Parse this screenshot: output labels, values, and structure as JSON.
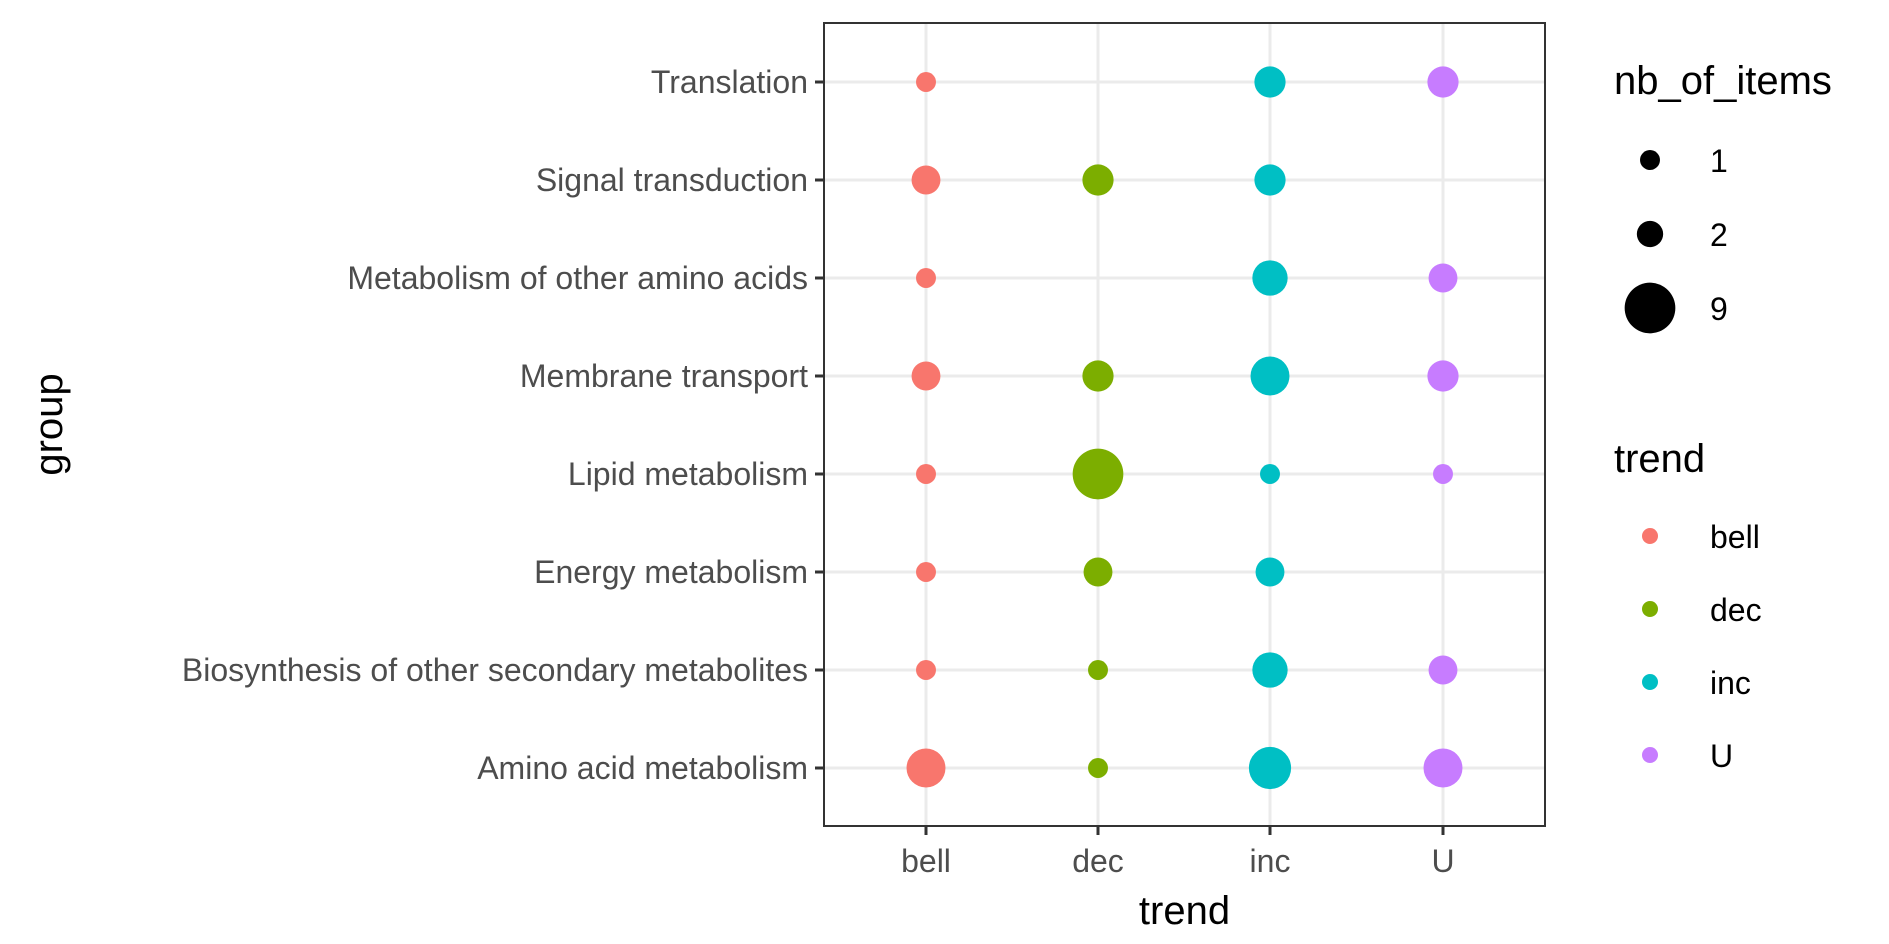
{
  "chart_data": {
    "type": "scatter",
    "title": "",
    "xlabel": "trend",
    "ylabel": "group",
    "x_categories": [
      "bell",
      "dec",
      "inc",
      "U"
    ],
    "y_categories": [
      "Amino acid metabolism",
      "Biosynthesis of other secondary metabolites",
      "Energy metabolism",
      "Lipid metabolism",
      "Membrane transport",
      "Metabolism of other amino acids",
      "Signal transduction",
      "Translation"
    ],
    "points": [
      {
        "x": "bell",
        "y": "Translation",
        "size": 1
      },
      {
        "x": "inc",
        "y": "Translation",
        "size": 3
      },
      {
        "x": "U",
        "y": "Translation",
        "size": 3
      },
      {
        "x": "bell",
        "y": "Signal transduction",
        "size": 2.5
      },
      {
        "x": "dec",
        "y": "Signal transduction",
        "size": 3
      },
      {
        "x": "inc",
        "y": "Signal transduction",
        "size": 3
      },
      {
        "x": "bell",
        "y": "Metabolism of other amino acids",
        "size": 1
      },
      {
        "x": "inc",
        "y": "Metabolism of other amino acids",
        "size": 4
      },
      {
        "x": "U",
        "y": "Metabolism of other amino acids",
        "size": 2.5
      },
      {
        "x": "bell",
        "y": "Membrane transport",
        "size": 2.5
      },
      {
        "x": "dec",
        "y": "Membrane transport",
        "size": 3
      },
      {
        "x": "inc",
        "y": "Membrane transport",
        "size": 5
      },
      {
        "x": "U",
        "y": "Membrane transport",
        "size": 3
      },
      {
        "x": "bell",
        "y": "Lipid metabolism",
        "size": 1
      },
      {
        "x": "dec",
        "y": "Lipid metabolism",
        "size": 9
      },
      {
        "x": "inc",
        "y": "Lipid metabolism",
        "size": 1
      },
      {
        "x": "U",
        "y": "Lipid metabolism",
        "size": 1
      },
      {
        "x": "bell",
        "y": "Energy metabolism",
        "size": 1
      },
      {
        "x": "dec",
        "y": "Energy metabolism",
        "size": 2.5
      },
      {
        "x": "inc",
        "y": "Energy metabolism",
        "size": 2.5
      },
      {
        "x": "bell",
        "y": "Biosynthesis of other secondary metabolites",
        "size": 1
      },
      {
        "x": "dec",
        "y": "Biosynthesis of other secondary metabolites",
        "size": 1
      },
      {
        "x": "inc",
        "y": "Biosynthesis of other secondary metabolites",
        "size": 4
      },
      {
        "x": "U",
        "y": "Biosynthesis of other secondary metabolites",
        "size": 2.5
      },
      {
        "x": "bell",
        "y": "Amino acid metabolism",
        "size": 5
      },
      {
        "x": "dec",
        "y": "Amino acid metabolism",
        "size": 1
      },
      {
        "x": "inc",
        "y": "Amino acid metabolism",
        "size": 6
      },
      {
        "x": "U",
        "y": "Amino acid metabolism",
        "size": 5
      }
    ],
    "size_legend": {
      "title": "nb_of_items",
      "entries": [
        {
          "label": "1",
          "size": 1
        },
        {
          "label": "2",
          "size": 2
        },
        {
          "label": "9",
          "size": 9
        }
      ]
    },
    "color_legend": {
      "title": "trend",
      "entries": [
        {
          "label": "bell",
          "color": "#F8766D"
        },
        {
          "label": "dec",
          "color": "#7CAE00"
        },
        {
          "label": "inc",
          "color": "#00BFC4"
        },
        {
          "label": "U",
          "color": "#C77CFF"
        }
      ]
    },
    "grid": true,
    "legend_position": "right"
  }
}
